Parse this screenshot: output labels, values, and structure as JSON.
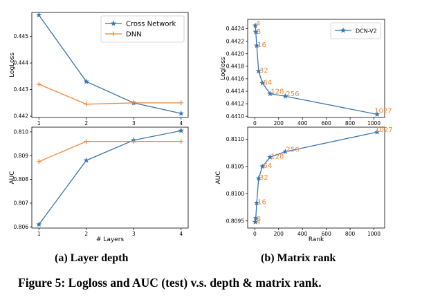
{
  "colors": {
    "cross": "#3b75af",
    "dnn": "#ef8636",
    "dcn": "#3b75af",
    "rank_label": "#ef8636",
    "axis": "#000000"
  },
  "captions": {
    "a": "(a) Layer depth",
    "b": "(b) Matrix rank",
    "figure": "Figure 5: Logloss and AUC (test) v.s. depth & matrix rank."
  },
  "chart_data": [
    {
      "id": "a-logloss",
      "type": "line",
      "title": "",
      "xlabel": "",
      "ylabel": "LogLoss",
      "xlim": [
        0.85,
        4.15
      ],
      "ylim": [
        0.44195,
        0.4459
      ],
      "xticks": [
        1,
        2,
        3,
        4
      ],
      "xtick_labels": [
        "1",
        "2",
        "3",
        "4"
      ],
      "yticks": [
        0.442,
        0.443,
        0.444,
        0.445
      ],
      "ytick_labels": [
        "0.442",
        "0.443",
        "0.444",
        "0.445"
      ],
      "x": [
        1,
        2,
        3,
        4
      ],
      "series": [
        {
          "name": "Cross Network",
          "key": "cross",
          "marker": "star",
          "values": [
            0.4458,
            0.4433,
            0.4425,
            0.4421
          ]
        },
        {
          "name": "DNN",
          "key": "dnn",
          "marker": "x",
          "values": [
            0.4432,
            0.44245,
            0.4425,
            0.4425
          ]
        }
      ],
      "legend": "top-right"
    },
    {
      "id": "a-auc",
      "type": "line",
      "title": "",
      "xlabel": "# Layers",
      "ylabel": "AUC",
      "xlim": [
        0.85,
        4.15
      ],
      "ylim": [
        0.80595,
        0.8102
      ],
      "xticks": [
        1,
        2,
        3,
        4
      ],
      "xtick_labels": [
        "1",
        "2",
        "3",
        "4"
      ],
      "yticks": [
        0.806,
        0.807,
        0.808,
        0.809,
        0.81
      ],
      "ytick_labels": [
        "0.806",
        "0.807",
        "0.808",
        "0.809",
        "0.810"
      ],
      "x": [
        1,
        2,
        3,
        4
      ],
      "series": [
        {
          "name": "Cross Network",
          "key": "cross",
          "marker": "star",
          "values": [
            0.8061,
            0.8088,
            0.80965,
            0.81005
          ]
        },
        {
          "name": "DNN",
          "key": "dnn",
          "marker": "x",
          "values": [
            0.80875,
            0.8096,
            0.8096,
            0.8096
          ]
        }
      ]
    },
    {
      "id": "b-logloss",
      "type": "line",
      "title": "",
      "xlabel": "",
      "ylabel": "Logloss",
      "xlim": [
        -60,
        1090
      ],
      "ylim": [
        0.44098,
        0.44255
      ],
      "xticks": [
        0,
        200,
        400,
        600,
        800,
        1000
      ],
      "xtick_labels": [
        "0",
        "200",
        "400",
        "600",
        "800",
        "1000"
      ],
      "yticks": [
        0.441,
        0.4412,
        0.4414,
        0.4416,
        0.4418,
        0.442,
        0.4422,
        0.4424
      ],
      "ytick_labels": [
        "0.4410",
        "0.4412",
        "0.4414",
        "0.4416",
        "0.4418",
        "0.4420",
        "0.4422",
        "0.4424"
      ],
      "x": [
        4,
        8,
        16,
        32,
        64,
        128,
        256,
        1027
      ],
      "series": [
        {
          "name": "DCN-V2",
          "key": "dcn",
          "marker": "star",
          "values": [
            0.44245,
            0.44235,
            0.44213,
            0.44172,
            0.44153,
            0.44136,
            0.44132,
            0.44103
          ]
        }
      ],
      "point_labels": [
        "4",
        "8",
        "16",
        "32",
        "64",
        "128",
        "256",
        "1027"
      ],
      "legend": "top-right"
    },
    {
      "id": "b-auc",
      "type": "line",
      "title": "",
      "xlabel": "Rank",
      "ylabel": "AUC",
      "xlim": [
        -60,
        1090
      ],
      "ylim": [
        0.80937,
        0.81122
      ],
      "xticks": [
        0,
        200,
        400,
        600,
        800,
        1000
      ],
      "xtick_labels": [
        "0",
        "200",
        "400",
        "600",
        "800",
        "1000"
      ],
      "yticks": [
        0.8095,
        0.81,
        0.8105,
        0.811
      ],
      "ytick_labels": [
        "0.8095",
        "0.8100",
        "0.8105",
        "0.8110"
      ],
      "x": [
        4,
        8,
        16,
        32,
        64,
        128,
        256,
        1027
      ],
      "series": [
        {
          "name": "DCN-V2",
          "key": "dcn",
          "marker": "star",
          "values": [
            0.80948,
            0.80955,
            0.80983,
            0.81028,
            0.8105,
            0.81067,
            0.81077,
            0.81113
          ]
        }
      ],
      "point_labels": [
        "4",
        "8",
        "16",
        "32",
        "64",
        "128",
        "256",
        "1027"
      ]
    }
  ]
}
